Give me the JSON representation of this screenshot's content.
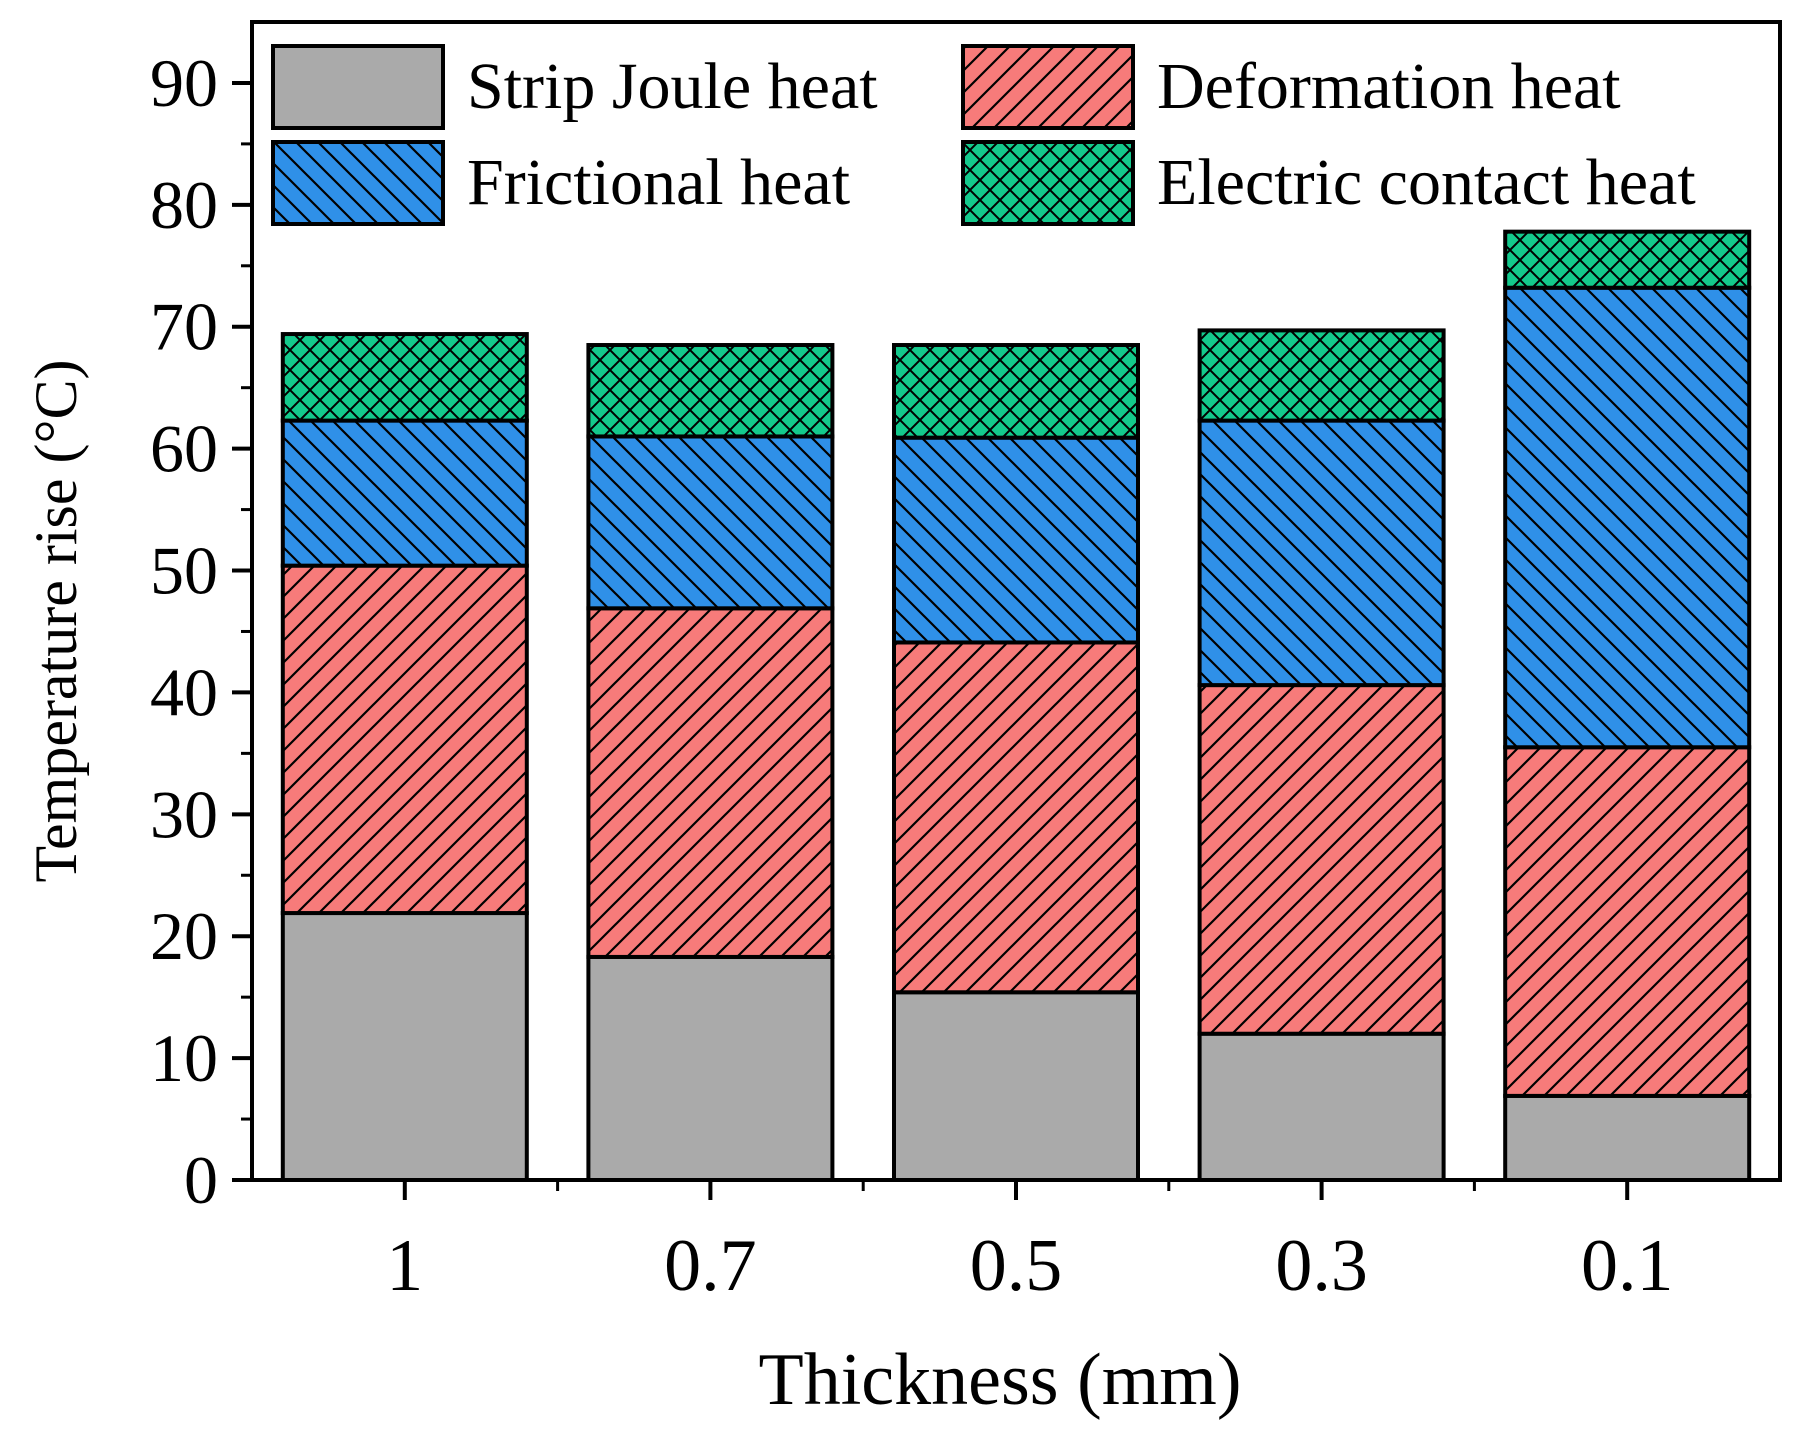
{
  "chart_data": {
    "type": "bar",
    "stacked": true,
    "title": "",
    "xlabel": "Thickness (mm)",
    "ylabel": "Temperature rise (°C)",
    "ylim": [
      0,
      95
    ],
    "yticks": [
      0,
      10,
      20,
      30,
      40,
      50,
      60,
      70,
      80,
      90
    ],
    "ytick_labels": [
      "0",
      "10",
      "20",
      "30",
      "40",
      "50",
      "60",
      "70",
      "80",
      "90"
    ],
    "categories": [
      "1",
      "0.7",
      "0.5",
      "0.3",
      "0.1"
    ],
    "grid": false,
    "legend_position": "top",
    "series": [
      {
        "name": "Strip Joule heat",
        "color": "#aaaaaa",
        "pattern": "solid",
        "values": [
          21.9,
          18.3,
          15.4,
          12.0,
          6.9
        ]
      },
      {
        "name": "Deformation heat",
        "color": "#f77b7a",
        "pattern": "forward-diagonal",
        "values": [
          28.5,
          28.6,
          28.7,
          28.6,
          28.6
        ]
      },
      {
        "name": "Frictional heat",
        "color": "#2f90e8",
        "pattern": "back-diagonal",
        "values": [
          11.9,
          14.1,
          16.8,
          21.7,
          37.7
        ]
      },
      {
        "name": "Electric contact heat",
        "color": "#14c98c",
        "pattern": "cross-hatch",
        "values": [
          7.1,
          7.5,
          7.6,
          7.4,
          4.6
        ]
      }
    ]
  }
}
